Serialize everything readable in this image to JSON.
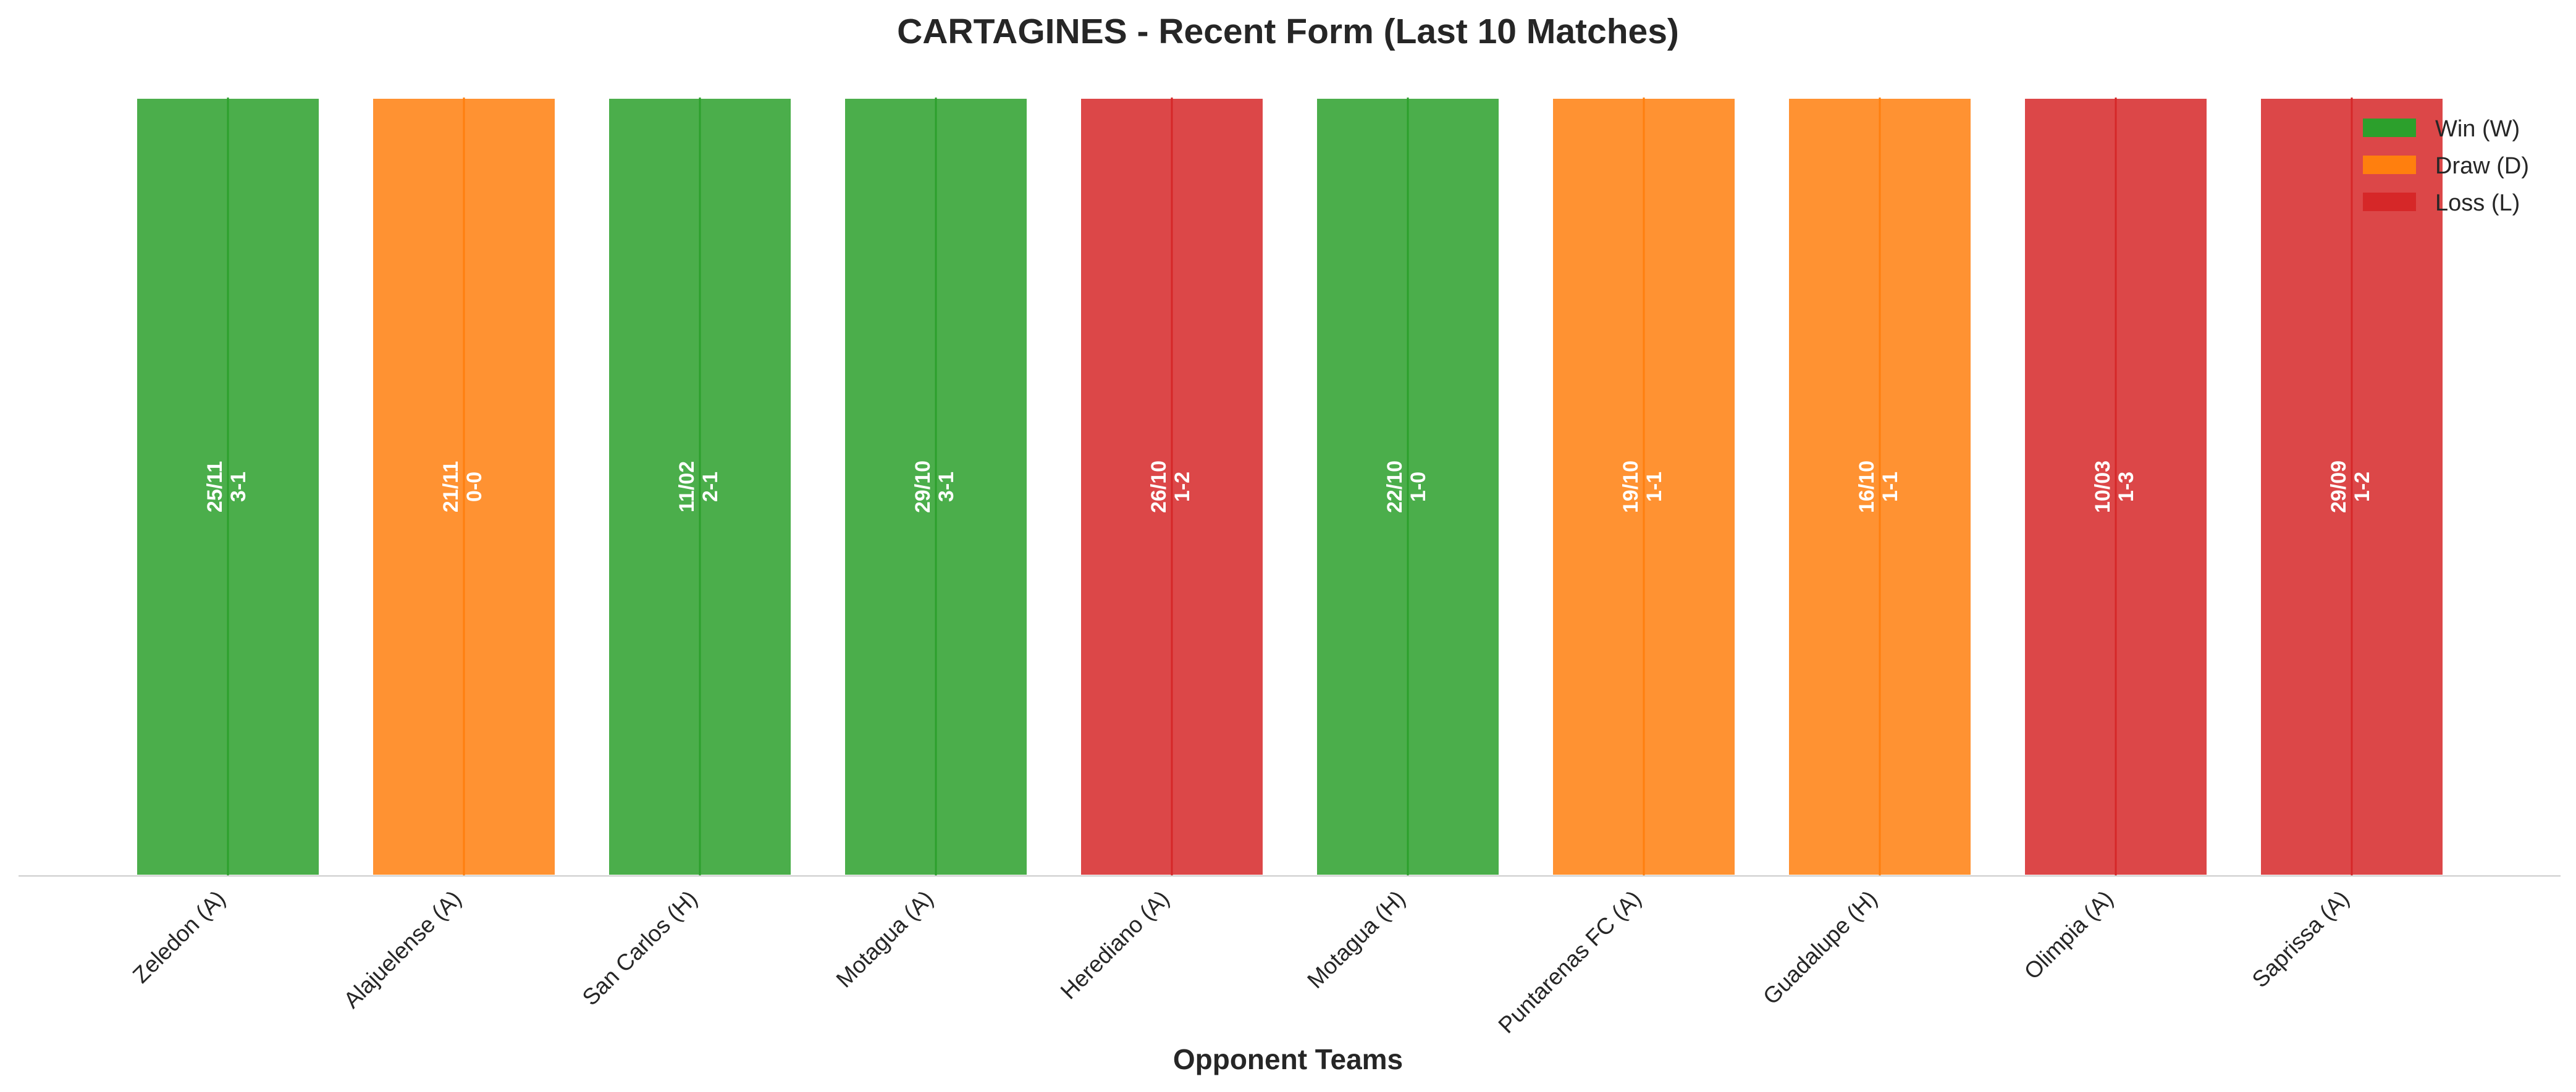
{
  "chart_data": {
    "type": "bar",
    "title": "CARTAGINES - Recent Form (Last 10 Matches)",
    "xlabel": "Opponent Teams",
    "ylabel": "",
    "ylim": [
      0,
      1
    ],
    "grid": false,
    "legend_position": "top-right",
    "categories": [
      "Zeledon (A)",
      "Alajuelense (A)",
      "San Carlos (H)",
      "Motagua (A)",
      "Herediano (A)",
      "Motagua (H)",
      "Puntarenas FC (A)",
      "Guadalupe (H)",
      "Olimpia (A)",
      "Saprissa (A)"
    ],
    "values": [
      1,
      1,
      1,
      1,
      1,
      1,
      1,
      1,
      1,
      1
    ],
    "results": [
      "W",
      "D",
      "W",
      "W",
      "L",
      "W",
      "D",
      "D",
      "L",
      "L"
    ],
    "dates": [
      "25/11",
      "21/11",
      "11/02",
      "29/10",
      "26/10",
      "22/10",
      "19/10",
      "16/10",
      "10/03",
      "29/09"
    ],
    "scores": [
      "3-1",
      "0-0",
      "2-1",
      "3-1",
      "1-2",
      "1-0",
      "1-1",
      "1-1",
      "1-3",
      "1-2"
    ],
    "legend": [
      {
        "key": "W",
        "label": "Win (W)",
        "color": "#2ca02c"
      },
      {
        "key": "D",
        "label": "Draw (D)",
        "color": "#ff7f0e"
      },
      {
        "key": "L",
        "label": "Loss (L)",
        "color": "#d62728"
      }
    ]
  }
}
